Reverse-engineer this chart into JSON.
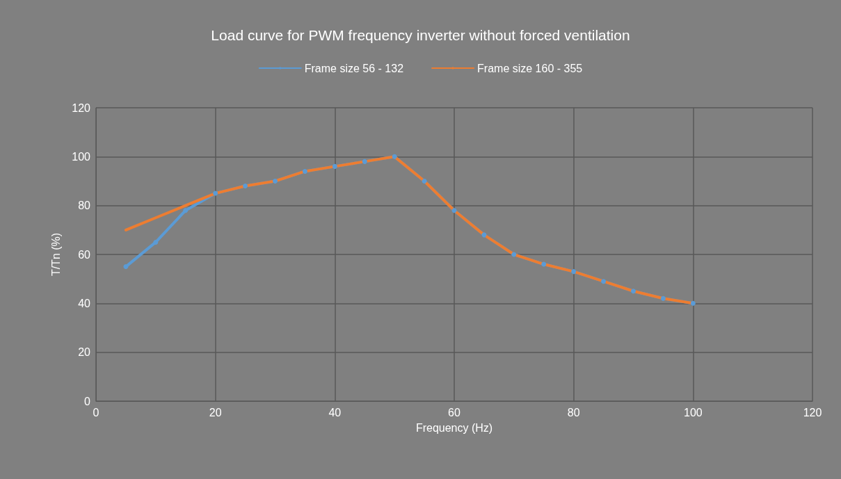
{
  "chart_data": {
    "type": "line",
    "title": "Load curve for PWM frequency inverter without forced ventilation",
    "xlabel": "Frequency (Hz)",
    "ylabel": "T/Tn (%)",
    "xlim": [
      0,
      120
    ],
    "xticks": [
      0,
      20,
      40,
      60,
      80,
      100,
      120
    ],
    "ylim": [
      0,
      120
    ],
    "yticks": [
      0,
      20,
      40,
      60,
      80,
      100,
      120
    ],
    "grid": true,
    "legend": "top",
    "series": [
      {
        "name": "Frame size 56 - 132",
        "color": "#5b9bd5",
        "marker": "circle",
        "x": [
          5,
          10,
          15,
          20,
          25,
          30,
          35,
          40,
          45,
          50,
          55,
          60,
          65,
          70,
          75,
          80,
          85,
          90,
          95,
          100
        ],
        "values": [
          55,
          65,
          78,
          85,
          88,
          90,
          94,
          96,
          98,
          100,
          90,
          78,
          68,
          60,
          56,
          53,
          49,
          45,
          42,
          40
        ]
      },
      {
        "name": "Frame size 160 - 355",
        "color": "#ed7d31",
        "marker": "none",
        "x": [
          5,
          10,
          15,
          20,
          25,
          30,
          35,
          40,
          45,
          50,
          55,
          60,
          65,
          70,
          75,
          80,
          85,
          90,
          95,
          100
        ],
        "values": [
          70,
          75,
          80,
          85,
          88,
          90,
          94,
          96,
          98,
          100,
          90,
          78,
          68,
          60,
          56,
          53,
          49,
          45,
          42,
          40
        ]
      }
    ]
  }
}
